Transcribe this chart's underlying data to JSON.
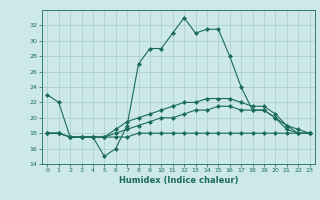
{
  "xlabel": "Humidex (Indice chaleur)",
  "bg_color": "#cce8e8",
  "grid_color": "#aacccc",
  "line_color": "#1a6b5a",
  "x_values": [
    0,
    1,
    2,
    3,
    4,
    5,
    6,
    7,
    8,
    9,
    10,
    11,
    12,
    13,
    14,
    15,
    16,
    17,
    18,
    19,
    20,
    21,
    22,
    23
  ],
  "series1": [
    23,
    22,
    17.5,
    17.5,
    17.5,
    15,
    16,
    19,
    27,
    29,
    29,
    31,
    33,
    31,
    31.5,
    31.5,
    28,
    24,
    21,
    21,
    20,
    19,
    18,
    18
  ],
  "series2": [
    18,
    18,
    17.5,
    17.5,
    17.5,
    17.5,
    18.5,
    19.5,
    20,
    20.5,
    21,
    21.5,
    22,
    22,
    22.5,
    22.5,
    22.5,
    22,
    21.5,
    21.5,
    20.5,
    19,
    18.5,
    18
  ],
  "series3": [
    18,
    18,
    17.5,
    17.5,
    17.5,
    17.5,
    18,
    18.5,
    19,
    19.5,
    20,
    20,
    20.5,
    21,
    21,
    21.5,
    21.5,
    21,
    21,
    21,
    20,
    18.5,
    18,
    18
  ],
  "series4": [
    18,
    18,
    17.5,
    17.5,
    17.5,
    17.5,
    17.5,
    17.5,
    18,
    18,
    18,
    18,
    18,
    18,
    18,
    18,
    18,
    18,
    18,
    18,
    18,
    18,
    18,
    18
  ],
  "ylim": [
    14,
    34
  ],
  "yticks": [
    14,
    16,
    18,
    20,
    22,
    24,
    26,
    28,
    30,
    32
  ],
  "xlim": [
    -0.5,
    23.5
  ],
  "xticks": [
    0,
    1,
    2,
    3,
    4,
    5,
    6,
    7,
    8,
    9,
    10,
    11,
    12,
    13,
    14,
    15,
    16,
    17,
    18,
    19,
    20,
    21,
    22,
    23
  ]
}
